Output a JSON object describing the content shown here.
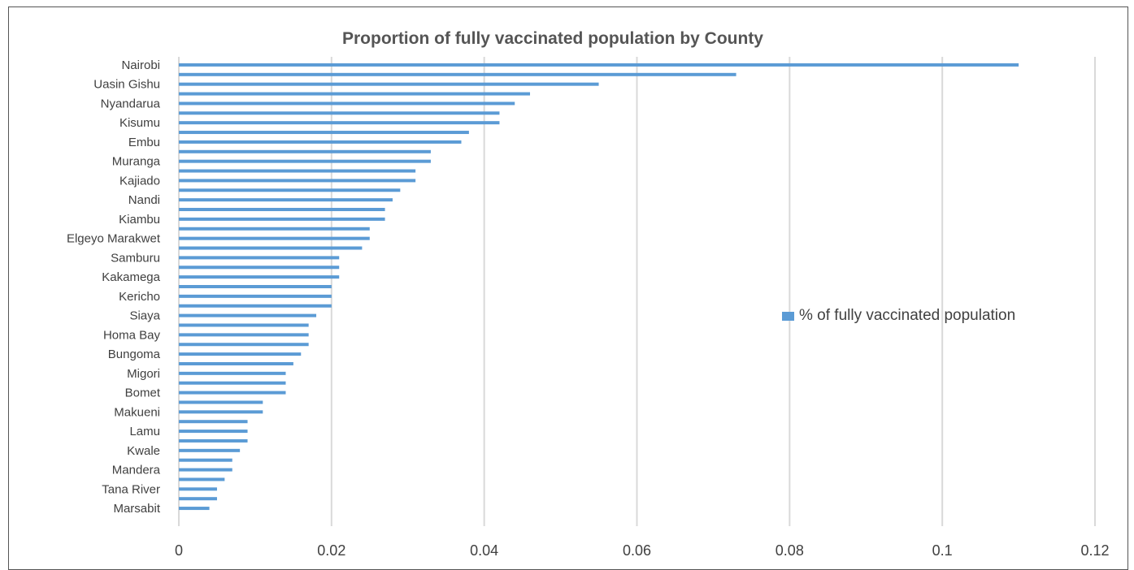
{
  "chart_data": {
    "type": "bar",
    "orientation": "horizontal",
    "title": "Proportion of fully vaccinated population by County",
    "xlabel": "",
    "ylabel": "",
    "xlim": [
      0,
      0.12
    ],
    "x_ticks": [
      "0",
      "0.02",
      "0.04",
      "0.06",
      "0.08",
      "0.1",
      "0.12"
    ],
    "x_tick_values": [
      0,
      0.02,
      0.04,
      0.06,
      0.08,
      0.1,
      0.12
    ],
    "grid": "vertical",
    "legend_position": "right",
    "bar_color": "#5b9bd5",
    "series": [
      {
        "name": "% of fully vaccinated population",
        "values": [
          0.11,
          0.073,
          0.055,
          0.046,
          0.044,
          0.042,
          0.042,
          0.038,
          0.037,
          0.033,
          0.033,
          0.031,
          0.031,
          0.029,
          0.028,
          0.027,
          0.027,
          0.025,
          0.025,
          0.024,
          0.021,
          0.021,
          0.021,
          0.02,
          0.02,
          0.02,
          0.018,
          0.017,
          0.017,
          0.017,
          0.016,
          0.015,
          0.014,
          0.014,
          0.014,
          0.011,
          0.011,
          0.009,
          0.009,
          0.009,
          0.008,
          0.007,
          0.007,
          0.006,
          0.005,
          0.005,
          0.004
        ]
      }
    ],
    "category_labels": [
      {
        "index": 0,
        "text": "Nairobi"
      },
      {
        "index": 2,
        "text": "Uasin Gishu"
      },
      {
        "index": 4,
        "text": "Nyandarua"
      },
      {
        "index": 6,
        "text": "Kisumu"
      },
      {
        "index": 8,
        "text": "Embu"
      },
      {
        "index": 10,
        "text": "Muranga"
      },
      {
        "index": 12,
        "text": "Kajiado"
      },
      {
        "index": 14,
        "text": "Nandi"
      },
      {
        "index": 16,
        "text": "Kiambu"
      },
      {
        "index": 18,
        "text": "Elgeyo Marakwet"
      },
      {
        "index": 20,
        "text": "Samburu"
      },
      {
        "index": 22,
        "text": "Kakamega"
      },
      {
        "index": 24,
        "text": "Kericho"
      },
      {
        "index": 26,
        "text": "Siaya"
      },
      {
        "index": 28,
        "text": "Homa Bay"
      },
      {
        "index": 30,
        "text": "Bungoma"
      },
      {
        "index": 32,
        "text": "Migori"
      },
      {
        "index": 34,
        "text": "Bomet"
      },
      {
        "index": 36,
        "text": "Makueni"
      },
      {
        "index": 38,
        "text": "Lamu"
      },
      {
        "index": 40,
        "text": "Kwale"
      },
      {
        "index": 42,
        "text": "Mandera"
      },
      {
        "index": 44,
        "text": "Tana River"
      },
      {
        "index": 46,
        "text": "Marsabit"
      }
    ]
  }
}
